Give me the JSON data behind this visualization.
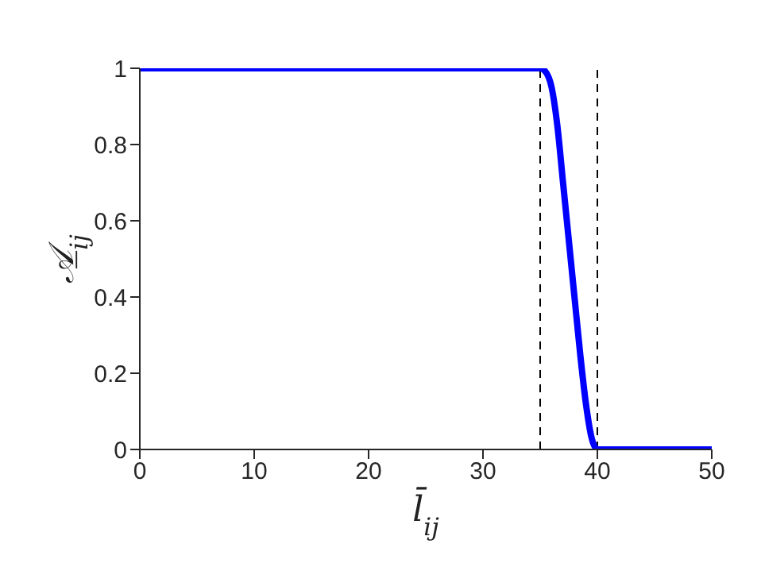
{
  "chart_data": {
    "type": "line",
    "xlabel": "l̄$_{ij}$",
    "ylabel": "𝒜̲$_{ij}$",
    "x": [
      0,
      5,
      10,
      15,
      20,
      25,
      30,
      35,
      35.5,
      36,
      36.5,
      37,
      37.5,
      38,
      38.5,
      39,
      39.5,
      40,
      45,
      50
    ],
    "series": [
      {
        "color": "#0000ff",
        "values": [
          1,
          1,
          1,
          1,
          1,
          1,
          1,
          1,
          0.99,
          0.95,
          0.85,
          0.7,
          0.55,
          0.4,
          0.25,
          0.12,
          0.03,
          0,
          0,
          0
        ]
      }
    ],
    "xlim": [
      0,
      50
    ],
    "xticks": [
      0,
      10,
      20,
      30,
      40,
      50
    ],
    "ylim": [
      0,
      1
    ],
    "yticks": [
      0,
      0.2,
      0.4,
      0.6,
      0.8,
      1
    ],
    "ref_lines": [
      {
        "axis": "x",
        "value": 35,
        "color": "#000000",
        "line_style": "dashed"
      },
      {
        "axis": "x",
        "value": 40,
        "color": "#000000",
        "line_style": "dashed"
      }
    ],
    "grid": false,
    "legend": false,
    "marker": "none",
    "line_style": "solid"
  }
}
